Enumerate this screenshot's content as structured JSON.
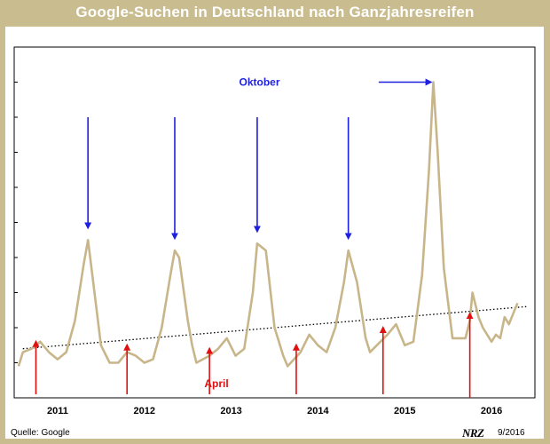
{
  "title": "Google-Suchen in Deutschland nach Ganzjahresreifen",
  "source": "Quelle: Google",
  "logo_text": "NRZ",
  "date": "9/2016",
  "colors": {
    "frame": "#c9bc8f",
    "line": "#c8b68a",
    "oktober": "#1f1fe0",
    "april": "#e01010"
  },
  "chart_data": {
    "type": "line",
    "title": "Google-Suchen in Deutschland nach Ganzjahresreifen",
    "xlabel": "",
    "ylabel": "",
    "x_ticks": [
      "2011",
      "2012",
      "2013",
      "2014",
      "2015",
      "2016"
    ],
    "xlim": [
      2010.5,
      2016.5
    ],
    "ylim": [
      0,
      100
    ],
    "yticks": [
      0,
      10,
      20,
      30,
      40,
      50,
      60,
      70,
      80,
      90,
      100
    ],
    "grid": false,
    "series": [
      {
        "points": [
          [
            2010.55,
            9
          ],
          [
            2010.6,
            13
          ],
          [
            2010.7,
            14
          ],
          [
            2010.8,
            16
          ],
          [
            2010.9,
            13
          ],
          [
            2011.0,
            11
          ],
          [
            2011.1,
            13
          ],
          [
            2011.2,
            22
          ],
          [
            2011.3,
            38
          ],
          [
            2011.35,
            45
          ],
          [
            2011.4,
            35
          ],
          [
            2011.5,
            15
          ],
          [
            2011.6,
            10
          ],
          [
            2011.7,
            10
          ],
          [
            2011.8,
            13
          ],
          [
            2011.9,
            12
          ],
          [
            2012.0,
            10
          ],
          [
            2012.1,
            11
          ],
          [
            2012.2,
            20
          ],
          [
            2012.3,
            35
          ],
          [
            2012.35,
            42
          ],
          [
            2012.4,
            40
          ],
          [
            2012.5,
            22
          ],
          [
            2012.55,
            15
          ],
          [
            2012.6,
            10
          ],
          [
            2012.75,
            12
          ],
          [
            2012.85,
            14
          ],
          [
            2012.95,
            17
          ],
          [
            2013.05,
            12
          ],
          [
            2013.15,
            14
          ],
          [
            2013.25,
            30
          ],
          [
            2013.3,
            44
          ],
          [
            2013.4,
            42
          ],
          [
            2013.5,
            20
          ],
          [
            2013.6,
            12
          ],
          [
            2013.65,
            9
          ],
          [
            2013.8,
            13
          ],
          [
            2013.9,
            18
          ],
          [
            2014.0,
            15
          ],
          [
            2014.1,
            13
          ],
          [
            2014.2,
            20
          ],
          [
            2014.3,
            33
          ],
          [
            2014.35,
            42
          ],
          [
            2014.45,
            33
          ],
          [
            2014.55,
            17
          ],
          [
            2014.6,
            13
          ],
          [
            2014.8,
            18
          ],
          [
            2014.9,
            21
          ],
          [
            2015.0,
            15
          ],
          [
            2015.1,
            16
          ],
          [
            2015.2,
            35
          ],
          [
            2015.28,
            65
          ],
          [
            2015.33,
            90
          ],
          [
            2015.38,
            70
          ],
          [
            2015.45,
            37
          ],
          [
            2015.55,
            17
          ],
          [
            2015.7,
            17
          ],
          [
            2015.75,
            22
          ],
          [
            2015.78,
            30
          ],
          [
            2015.85,
            23
          ],
          [
            2015.9,
            20
          ],
          [
            2016.0,
            16
          ],
          [
            2016.05,
            18
          ],
          [
            2016.1,
            17
          ],
          [
            2016.15,
            23
          ],
          [
            2016.2,
            21
          ],
          [
            2016.25,
            24
          ],
          [
            2016.3,
            27
          ]
        ]
      }
    ],
    "trendline": {
      "style": "dotted",
      "points": [
        [
          2010.6,
          14
        ],
        [
          2016.4,
          26
        ]
      ]
    },
    "annotations": [
      {
        "text": "Oktober",
        "color": "blue",
        "anchor": [
          2013.5,
          90
        ]
      },
      {
        "text": "April",
        "color": "red",
        "anchor": [
          2013.1,
          4
        ]
      }
    ],
    "oktober_arrows": [
      2011.35,
      2012.35,
      2013.3,
      2014.35
    ],
    "oktober_arrow_horizontal": [
      2014.7,
      2015.3
    ],
    "april_arrows": [
      2010.75,
      2011.8,
      2012.75,
      2013.75,
      2014.75,
      2015.75
    ]
  }
}
